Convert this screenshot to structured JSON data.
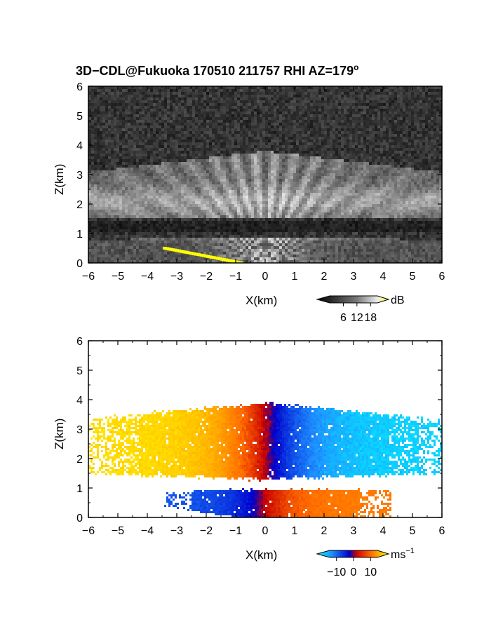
{
  "title": "3D−CDL@Fukuoka 170510 211757 RHI AZ=179",
  "title_superscript": "o",
  "chart_data": [
    {
      "type": "heatmap",
      "panel": "reflectivity",
      "xlabel": "X(km)",
      "ylabel": "Z(km)",
      "xlim": [
        -6,
        6
      ],
      "ylim": [
        0,
        6
      ],
      "xticks": [
        "−6",
        "−5",
        "−4",
        "−3",
        "−2",
        "−1",
        "0",
        "1",
        "2",
        "3",
        "4",
        "5",
        "6"
      ],
      "yticks": [
        "0",
        "1",
        "2",
        "3",
        "4",
        "5",
        "6"
      ],
      "colorbar": {
        "unit": "dB",
        "ticks": [
          "6",
          "12",
          "18"
        ],
        "range": [
          0,
          21
        ]
      },
      "features": [
        {
          "name": "upper layer",
          "z_range_km": [
            1.5,
            3.8
          ],
          "x_range_km": [
            -6,
            6
          ]
        },
        {
          "name": "lower layer",
          "z_range_km": [
            0.0,
            1.1
          ],
          "x_range_km": [
            -6,
            6
          ]
        },
        {
          "name": "ground clutter (yellow)",
          "x_range_km": [
            -3.4,
            -0.8
          ],
          "z_range_km": [
            0.0,
            0.5
          ]
        }
      ]
    },
    {
      "type": "heatmap",
      "panel": "doppler velocity",
      "xlabel": "X(km)",
      "ylabel": "Z(km)",
      "xlim": [
        -6,
        6
      ],
      "ylim": [
        0,
        6
      ],
      "xticks": [
        "−6",
        "−5",
        "−4",
        "−3",
        "−2",
        "−1",
        "0",
        "1",
        "2",
        "3",
        "4",
        "5",
        "6"
      ],
      "yticks": [
        "0",
        "1",
        "2",
        "3",
        "4",
        "5",
        "6"
      ],
      "colorbar": {
        "unit": "ms",
        "unit_exponent": "−1",
        "ticks": [
          "−10",
          "0",
          "10"
        ],
        "range": [
          -14,
          14
        ]
      },
      "features": [
        {
          "name": "upper layer",
          "z_range_km": [
            1.3,
            3.9
          ],
          "x_range_km": [
            -6,
            6
          ],
          "velocity_left_ms": 12,
          "velocity_right_ms": -12
        },
        {
          "name": "lower layer",
          "z_range_km": [
            0.0,
            0.95
          ],
          "x_range_km": [
            -3.5,
            4.3
          ],
          "velocity_left_ms": -6,
          "velocity_right_ms": 6
        }
      ]
    }
  ]
}
